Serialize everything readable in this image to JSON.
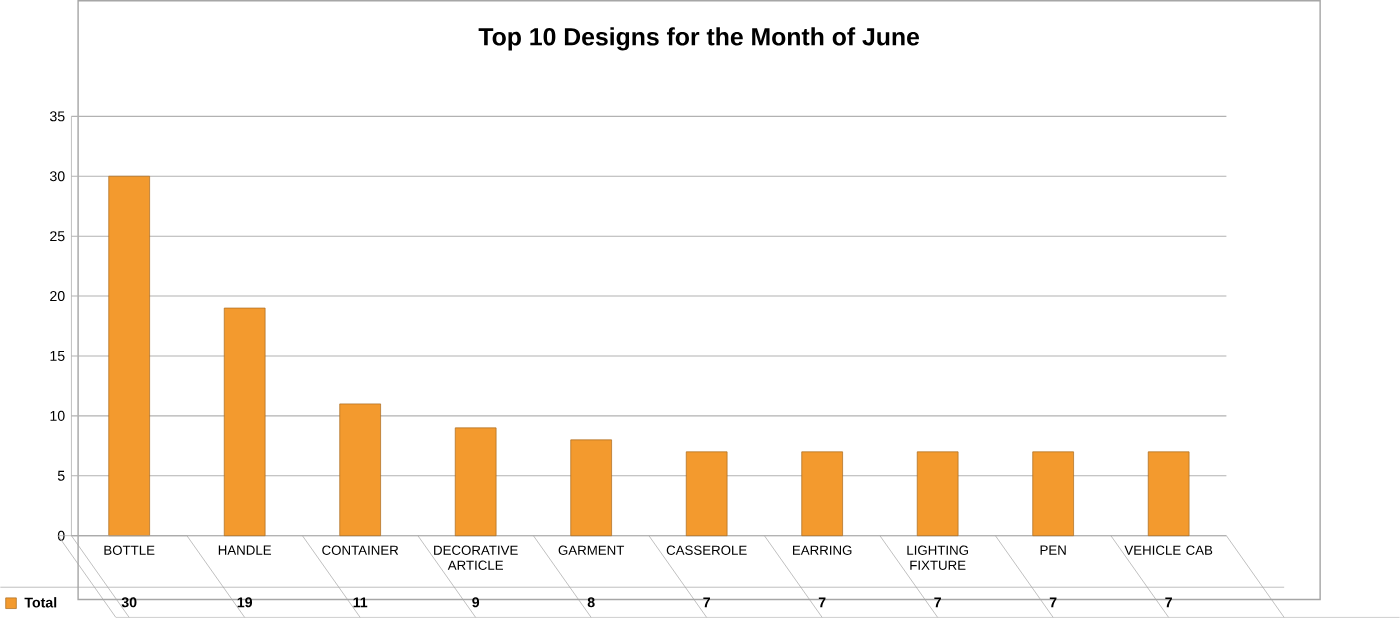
{
  "chart_data": {
    "type": "bar",
    "title": "Top 10 Designs for the Month of June",
    "categories": [
      "BOTTLE",
      "HANDLE",
      "CONTAINER",
      "DECORATIVE ARTICLE",
      "GARMENT",
      "CASSEROLE",
      "EARRING",
      "LIGHTING FIXTURE",
      "PEN",
      "VEHICLE CAB"
    ],
    "series": [
      {
        "name": "Total",
        "color": "#f39a2e",
        "values": [
          30,
          19,
          11,
          9,
          8,
          7,
          7,
          7,
          7,
          7
        ]
      }
    ],
    "ylim": [
      0,
      35
    ],
    "yticks": [
      0,
      5,
      10,
      15,
      20,
      25,
      30,
      35
    ],
    "grid": "y",
    "data_labels": true,
    "legend": "bottom left"
  }
}
